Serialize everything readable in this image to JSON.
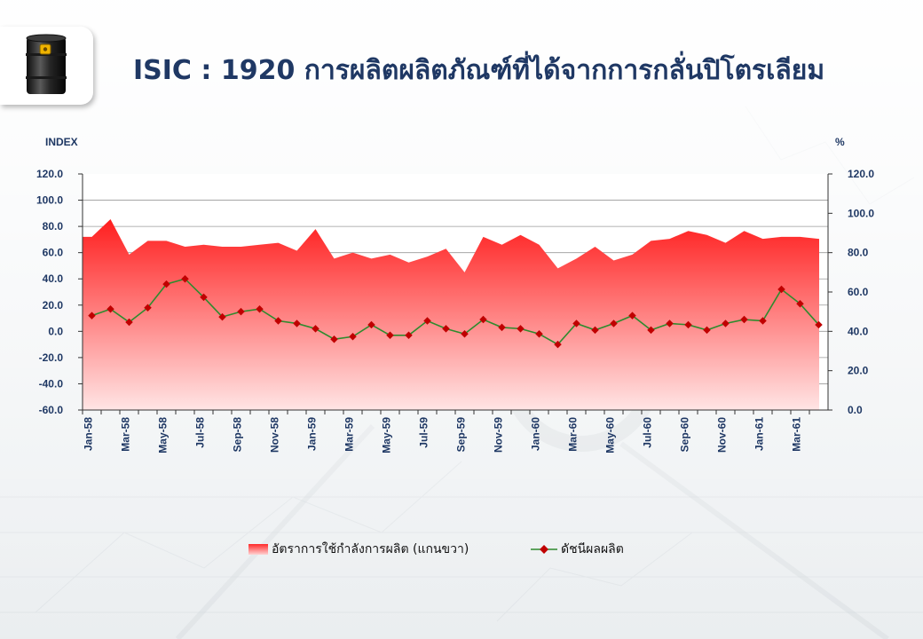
{
  "title": "ISIC : 1920 การผลิตผลิตภัณฑ์ที่ได้จากการกลั่นปิโตรเลียม",
  "icons": {
    "logo": "oil-barrel-icon"
  },
  "colors": {
    "title": "#1f3864",
    "area_top": "#ff1e1e",
    "area_bottom": "#ffe5e5",
    "line": "#2e8b2e",
    "marker": "#c00000"
  },
  "chart_data": {
    "type": "line",
    "left_axis_unit": "INDEX",
    "right_axis_unit": "%",
    "y_left": {
      "lim": [
        -60,
        120
      ],
      "ticks": [
        "120.0",
        "100.0",
        "80.0",
        "60.0",
        "40.0",
        "20.0",
        "0.0",
        "-20.0",
        "-40.0",
        "-60.0"
      ]
    },
    "y_right": {
      "lim": [
        0,
        120
      ],
      "ticks": [
        "120.0",
        "100.0",
        "80.0",
        "60.0",
        "40.0",
        "20.0",
        "0.0"
      ]
    },
    "x_tick_labels": [
      "Jan-58",
      "Mar-58",
      "May-58",
      "Jul-58",
      "Sep-58",
      "Nov-58",
      "Jan-59",
      "Mar-59",
      "May-59",
      "Jul-59",
      "Sep-59",
      "Nov-59",
      "Jan-60",
      "Mar-60",
      "May-60",
      "Jul-60",
      "Sep-60",
      "Nov-60",
      "Jan-61",
      "Mar-61"
    ],
    "categories": [
      "Jan-58",
      "Feb-58",
      "Mar-58",
      "Apr-58",
      "May-58",
      "Jun-58",
      "Jul-58",
      "Aug-58",
      "Sep-58",
      "Oct-58",
      "Nov-58",
      "Dec-58",
      "Jan-59",
      "Feb-59",
      "Mar-59",
      "Apr-59",
      "May-59",
      "Jun-59",
      "Jul-59",
      "Aug-59",
      "Sep-59",
      "Oct-59",
      "Nov-59",
      "Dec-59",
      "Jan-60",
      "Feb-60",
      "Mar-60",
      "Apr-60",
      "May-60",
      "Jun-60",
      "Jul-60",
      "Aug-60",
      "Sep-60",
      "Oct-60",
      "Nov-60",
      "Dec-60",
      "Jan-61",
      "Feb-61",
      "Mar-61",
      "Apr-61"
    ],
    "series": [
      {
        "name": "อัตราการใช้กำลังการผลิต (แกนขวา)",
        "type": "area",
        "axis": "right",
        "values": [
          88,
          97,
          79,
          86,
          86,
          83,
          84,
          83,
          83,
          84,
          85,
          81,
          92,
          77,
          80,
          77,
          79,
          75,
          78,
          82,
          70,
          88,
          84,
          89,
          84,
          72,
          77,
          83,
          76,
          79,
          86,
          87,
          91,
          89,
          85,
          91,
          87,
          88,
          88,
          87
        ]
      },
      {
        "name": "ดัชนีผลผลิต",
        "type": "line",
        "axis": "left",
        "values": [
          12,
          17,
          7,
          18,
          36,
          40,
          26,
          11,
          15,
          17,
          8,
          6,
          2,
          -6,
          -4,
          5,
          -3,
          -3,
          8,
          2,
          -2,
          9,
          3,
          2,
          -2,
          -10,
          6,
          1,
          6,
          12,
          1,
          6,
          5,
          1,
          6,
          9,
          8,
          32,
          21,
          5
        ]
      }
    ],
    "legend": "bottom-center",
    "grid": true
  }
}
